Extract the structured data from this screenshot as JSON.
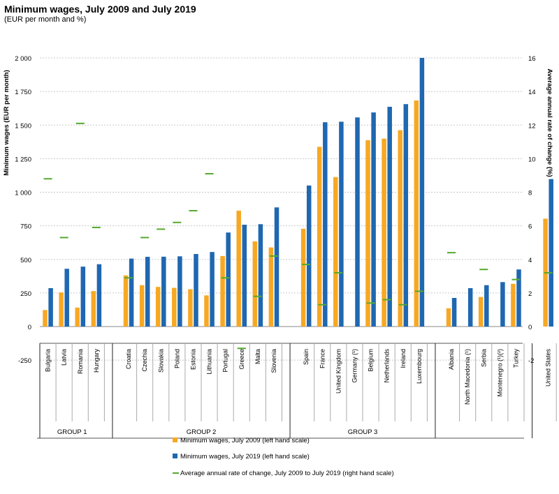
{
  "title": "Minimum wages, July 2009 and July 2019",
  "subtitle": "(EUR per month and %)",
  "colors": {
    "s2009": "#f7a823",
    "s2019": "#1f67b1",
    "rate": "#54a92e",
    "grid": "#c8c8c8",
    "axis": "#555555"
  },
  "chart_data": {
    "type": "bar",
    "title": "Minimum wages, July 2009 and July 2019",
    "subtitle": "(EUR per month and %)",
    "ylabel": "Minimum wages (EUR per month)",
    "y2label": "Average annual rate of change (%)",
    "ylim": [
      -250,
      2000
    ],
    "y_ticks": [
      -250,
      0,
      250,
      500,
      750,
      1000,
      1250,
      1500,
      1750,
      2000
    ],
    "y_tick_labels": [
      "-250",
      "0",
      "250",
      "500",
      "750",
      "1 000",
      "1 250",
      "1 500",
      "1 750",
      "2 000"
    ],
    "y2lim": [
      -2,
      16
    ],
    "y2_ticks": [
      -2,
      0,
      2,
      4,
      6,
      8,
      10,
      12,
      14,
      16
    ],
    "grid": true,
    "legend_position": "bottom-center",
    "legend": [
      "Minimum wages, July 2009 (left hand scale)",
      "Minimum wages, July 2019 (left hand scale)",
      "Average annual rate of change, July 2009 to July 2019 (right hand scale)"
    ],
    "groups": [
      {
        "name": "GROUP 1",
        "categories": [
          "Bulgaria",
          "Latvia",
          "Romania",
          "Hungary"
        ],
        "values_2009": [
          123,
          254,
          141,
          264
        ],
        "values_2019": [
          286,
          430,
          446,
          464
        ],
        "rate": [
          8.8,
          5.3,
          12.1,
          5.9
        ]
      },
      {
        "name": "GROUP 2",
        "categories": [
          "Croatia",
          "Czechia",
          "Slovakia",
          "Poland",
          "Estonia",
          "Lithuania",
          "Portugal",
          "Greece",
          "Malta",
          "Slovenia"
        ],
        "values_2009": [
          381,
          308,
          295,
          288,
          278,
          232,
          525,
          863,
          634,
          589
        ],
        "values_2019": [
          506,
          519,
          520,
          523,
          540,
          555,
          700,
          758,
          762,
          887
        ],
        "rate": [
          2.9,
          5.3,
          5.8,
          6.2,
          6.9,
          9.1,
          2.9,
          -1.3,
          1.8,
          4.2
        ]
      },
      {
        "name": "GROUP 3",
        "categories": [
          "Spain",
          "France",
          "United Kingdom",
          "Germany (¹)",
          "Belgium",
          "Netherlands",
          "Ireland",
          "Luxembourg"
        ],
        "values_2009": [
          728,
          1338,
          1113,
          null,
          1387,
          1399,
          1462,
          1683
        ],
        "values_2019": [
          1050,
          1521,
          1525,
          1557,
          1594,
          1636,
          1656,
          2071
        ],
        "rate": [
          3.7,
          1.3,
          3.2,
          null,
          1.4,
          1.6,
          1.3,
          2.1
        ]
      },
      {
        "name": "",
        "categories": [
          "Albania",
          "North Macedonia (¹)",
          "Serbia",
          "Montenegro (¹)(²)",
          "Turkey"
        ],
        "values_2009": [
          136,
          null,
          220,
          null,
          318
        ],
        "values_2019": [
          213,
          286,
          308,
          331,
          425
        ],
        "rate": [
          4.4,
          null,
          3.4,
          null,
          2.8
        ]
      },
      {
        "name": "",
        "categories": [
          "United States"
        ],
        "values_2009": [
          803
        ],
        "values_2019": [
          1098
        ],
        "rate": [
          3.2
        ]
      }
    ]
  }
}
